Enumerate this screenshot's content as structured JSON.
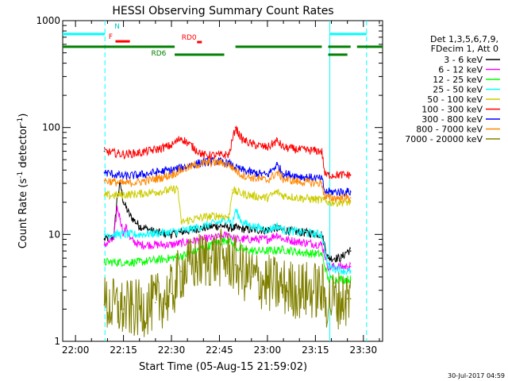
{
  "chart_data": {
    "type": "line",
    "title": "HESSI Observing Summary Count Rates",
    "xlabel": "Start Time (05-Aug-15 21:59:02)",
    "ylabel_main": "Count Rate (s",
    "ylabel_sup1": "-1",
    "ylabel_mid": " detector",
    "ylabel_sup2": "-1",
    "ylabel_end": ")",
    "y_scale": "log",
    "ylim": [
      1,
      1000
    ],
    "xlim_minutes": [
      -4,
      96
    ],
    "x_ticks": [
      {
        "label": "22:00",
        "m": 0
      },
      {
        "label": "22:15",
        "m": 15
      },
      {
        "label": "22:30",
        "m": 30
      },
      {
        "label": "22:45",
        "m": 45
      },
      {
        "label": "23:00",
        "m": 60
      },
      {
        "label": "23:15",
        "m": 75
      },
      {
        "label": "23:30",
        "m": 90
      }
    ],
    "y_ticks": [
      {
        "label": "1",
        "v": 1
      },
      {
        "label": "10",
        "v": 10
      },
      {
        "label": "100",
        "v": 100
      },
      {
        "label": "1000",
        "v": 1000
      }
    ],
    "legend_header": [
      "Det 1,3,5,6,7,9,",
      "FDecim 1, Att 0"
    ],
    "legend_position": "right",
    "series": [
      {
        "name": "3 - 6 keV",
        "color": "#000000",
        "x": [
          9,
          12,
          13,
          14,
          15,
          17,
          20,
          25,
          30,
          33,
          36,
          40,
          44,
          46,
          48,
          50,
          55,
          60,
          62,
          65,
          70,
          77,
          79,
          81,
          83,
          85,
          86
        ],
        "y": [
          9,
          9.5,
          22,
          30,
          20,
          15,
          12,
          10.5,
          10,
          10.5,
          11,
          11.5,
          12,
          12,
          11.5,
          11.5,
          11,
          11,
          11.5,
          11,
          10.5,
          10,
          6,
          6,
          6,
          7,
          7
        ]
      },
      {
        "name": "6 - 12 keV",
        "color": "#ff00ff",
        "x": [
          9,
          12,
          13,
          14,
          15,
          16,
          17,
          20,
          30,
          35,
          40,
          45,
          48,
          50,
          55,
          60,
          63,
          65,
          70,
          77,
          79,
          85,
          86
        ],
        "y": [
          8,
          9,
          18,
          14,
          10,
          12,
          9,
          8,
          8,
          8.5,
          9,
          9.5,
          10,
          9,
          9,
          9,
          10,
          9,
          8.5,
          8,
          5,
          5,
          5
        ]
      },
      {
        "name": "12 - 25 keV",
        "color": "#00ff00",
        "x": [
          9,
          20,
          30,
          35,
          40,
          45,
          48,
          50,
          55,
          60,
          65,
          70,
          77,
          79,
          85,
          86
        ],
        "y": [
          5.5,
          5.5,
          6,
          6.5,
          7.5,
          8.5,
          9,
          7.5,
          7,
          7,
          7.2,
          6.8,
          6.5,
          3.8,
          3.8,
          3.8
        ]
      },
      {
        "name": "25 - 50 keV",
        "color": "#00ffff",
        "x": [
          9,
          20,
          30,
          35,
          40,
          45,
          48,
          49,
          50,
          52,
          55,
          60,
          63,
          65,
          70,
          77,
          79,
          85,
          86
        ],
        "y": [
          10,
          10,
          10.5,
          11,
          12,
          13,
          14,
          12,
          17,
          13,
          12,
          11,
          12,
          11,
          10.5,
          10,
          5,
          4.5,
          4.5
        ]
      },
      {
        "name": "50 - 100 keV",
        "color": "#cccc00",
        "x": [
          9,
          15,
          20,
          25,
          30,
          32,
          33,
          35,
          40,
          45,
          48,
          49,
          50,
          55,
          60,
          63,
          65,
          70,
          77,
          79,
          85,
          86
        ],
        "y": [
          23,
          23.5,
          24,
          25,
          26,
          27,
          13,
          13.5,
          14.5,
          15,
          14.5,
          26,
          25,
          23,
          22,
          25,
          23,
          22,
          21,
          20,
          20,
          20
        ]
      },
      {
        "name": "100 - 300 keV",
        "color": "#ff0000",
        "x": [
          9,
          15,
          20,
          25,
          30,
          33,
          40,
          45,
          48,
          50,
          52,
          55,
          60,
          63,
          65,
          70,
          77,
          78,
          85,
          86
        ],
        "y": [
          60,
          56,
          58,
          62,
          68,
          80,
          55,
          55,
          56,
          100,
          78,
          70,
          65,
          75,
          65,
          62,
          60,
          36,
          36,
          36
        ]
      },
      {
        "name": "300 - 800 keV",
        "color": "#0000ff",
        "x": [
          9,
          15,
          20,
          25,
          30,
          33,
          38,
          42,
          45,
          48,
          50,
          52,
          55,
          60,
          63,
          65,
          70,
          77,
          78,
          85,
          86
        ],
        "y": [
          38,
          35,
          36,
          38,
          40,
          42,
          46,
          48,
          48,
          46,
          42,
          40,
          38,
          36,
          45,
          37,
          35,
          33,
          25,
          25,
          25
        ]
      },
      {
        "name": "800 - 7000 keV",
        "color": "#ff8800",
        "x": [
          9,
          15,
          20,
          25,
          30,
          33,
          38,
          42,
          45,
          48,
          50,
          52,
          55,
          60,
          63,
          65,
          70,
          77,
          78,
          85,
          86
        ],
        "y": [
          32,
          30,
          31,
          33,
          36,
          40,
          45,
          47,
          47,
          45,
          40,
          36,
          34,
          32,
          38,
          33,
          31,
          30,
          22,
          22,
          22
        ]
      },
      {
        "name": "7000 - 20000 keV",
        "color": "#808000",
        "x": [
          9,
          15,
          20,
          25,
          30,
          33,
          38,
          42,
          45,
          48,
          50,
          52,
          55,
          60,
          65,
          70,
          77,
          78,
          85,
          86
        ],
        "y": [
          2.2,
          2,
          2,
          2.3,
          2.8,
          4.5,
          5.5,
          6,
          6,
          5.8,
          5.2,
          4.5,
          4,
          3.5,
          3.2,
          3,
          3,
          2.4,
          2.5,
          2.5
        ]
      }
    ],
    "flag_bars": [
      {
        "label": "",
        "color": "#00ffff",
        "segments": [
          [
            -4,
            9.2
          ],
          [
            79.5,
            91
          ]
        ],
        "v": 750
      },
      {
        "label": "N",
        "color": "#00ffff",
        "segments": [],
        "v": 800,
        "label_m": 13
      },
      {
        "label": "F",
        "color": "#ff0000",
        "segments": [
          [
            12.5,
            17
          ]
        ],
        "v": 640,
        "label_m": 11
      },
      {
        "label": "RD0",
        "color": "#ff0000",
        "segments": [
          [
            38,
            39.5
          ]
        ],
        "v": 630,
        "label_m": 35.5
      },
      {
        "label": "RD6",
        "color": "#008000",
        "segments": [
          [
            -4,
            31
          ],
          [
            50,
            77
          ],
          [
            79,
            86
          ],
          [
            88,
            96
          ]
        ],
        "v": 570,
        "label_m": 26
      },
      {
        "label": "",
        "color": "#008000",
        "segments": [
          [
            31,
            46.5
          ],
          [
            79,
            85
          ]
        ],
        "v": 480
      }
    ],
    "vertical_lines": [
      {
        "m": 9.2,
        "color": "#00ffff",
        "style": "dashed"
      },
      {
        "m": 79.5,
        "color": "#00ffff",
        "style": "solid"
      },
      {
        "m": 91,
        "color": "#00ffff",
        "style": "dashed"
      }
    ],
    "footer_timestamp": "30-Jul-2017 04:59"
  }
}
